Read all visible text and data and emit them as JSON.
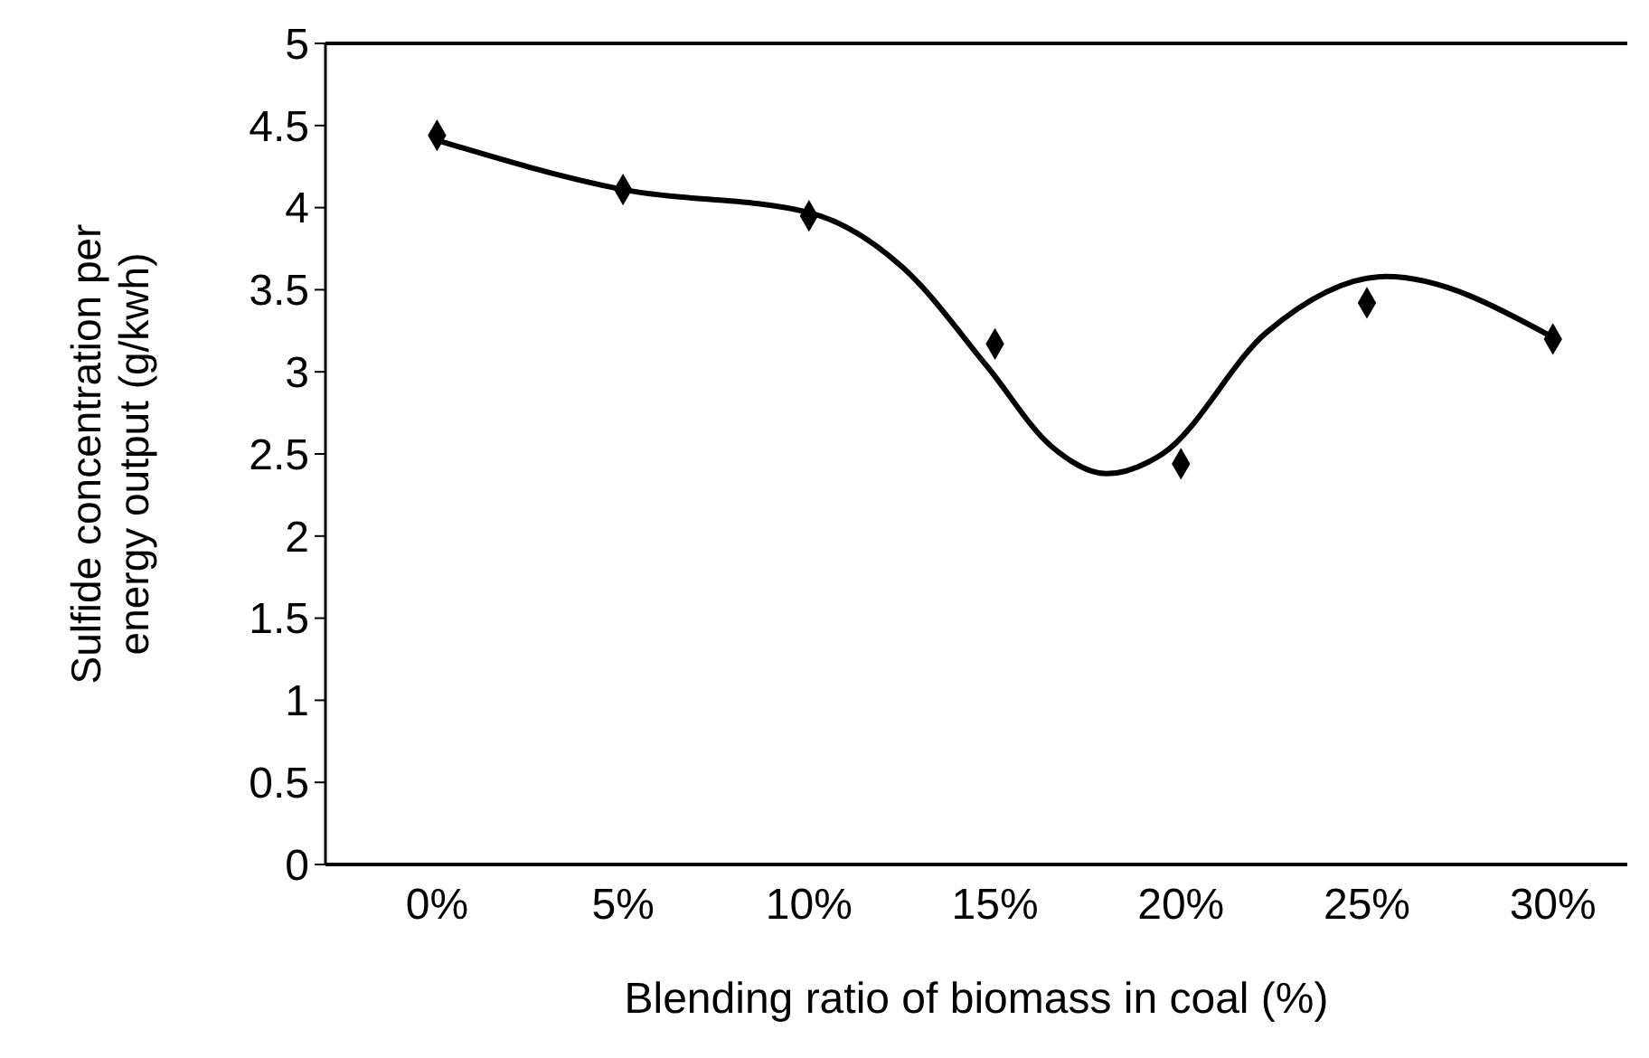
{
  "chart_data": {
    "type": "scatter",
    "xlabel": "Blending ratio of biomass in coal (%)",
    "ylabel": "Sulfide concentration per energy output (g/kwh)",
    "xlim": [
      -3,
      32
    ],
    "ylim": [
      0,
      5
    ],
    "xticks": [
      {
        "value": 0,
        "label": "0%"
      },
      {
        "value": 5,
        "label": "5%"
      },
      {
        "value": 10,
        "label": "10%"
      },
      {
        "value": 15,
        "label": "15%"
      },
      {
        "value": 20,
        "label": "20%"
      },
      {
        "value": 25,
        "label": "25%"
      },
      {
        "value": 30,
        "label": "30%"
      }
    ],
    "yticks": [
      0,
      0.5,
      1,
      1.5,
      2,
      2.5,
      3,
      3.5,
      4,
      4.5,
      5
    ],
    "grid": false,
    "series": [
      {
        "color": "#000000",
        "marker": "diamond",
        "x": [
          0,
          5,
          10,
          15,
          20,
          25,
          30
        ],
        "values": [
          4.44,
          4.11,
          3.95,
          3.17,
          2.44,
          3.42,
          3.2
        ]
      },
      {
        "type": "line",
        "color": "#000000",
        "marker": "none",
        "line_style": "solid",
        "x": [
          0,
          5,
          10,
          12.5,
          14.8,
          16.5,
          18,
          19.5,
          22.3,
          25.5,
          30
        ],
        "values": [
          4.41,
          4.11,
          3.97,
          3.64,
          3.03,
          2.55,
          2.38,
          2.5,
          3.24,
          3.58,
          3.21
        ]
      }
    ]
  }
}
